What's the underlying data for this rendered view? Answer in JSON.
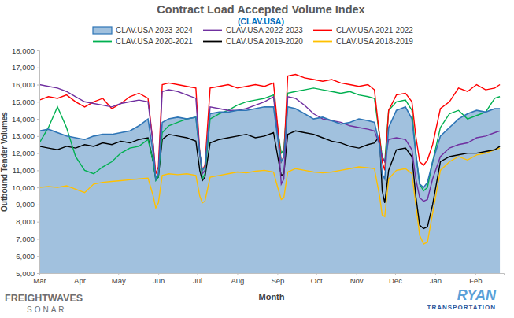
{
  "chart_data": {
    "type": "line",
    "title": "Contract Load Accepted Volume Index",
    "subtitle": "(CLAV.USA)",
    "x_label": "Month",
    "y_label": "Outbound Tender Volumes",
    "annotations": [
      "FREIGHTWAVES",
      "SONAR",
      "RYAN",
      "TRANSPORTATION"
    ],
    "legend": "top",
    "grid": false,
    "xlim": [
      0,
      359
    ],
    "xticks": [
      {
        "value": 0,
        "label": "Mar"
      },
      {
        "value": 31,
        "label": "Apr"
      },
      {
        "value": 61,
        "label": "May"
      },
      {
        "value": 92,
        "label": "Jun"
      },
      {
        "value": 122,
        "label": "Jul"
      },
      {
        "value": 153,
        "label": "Aug"
      },
      {
        "value": 184,
        "label": "Sep"
      },
      {
        "value": 214,
        "label": "Oct"
      },
      {
        "value": 245,
        "label": "Nov"
      },
      {
        "value": 275,
        "label": "Dec"
      },
      {
        "value": 306,
        "label": "Jan"
      },
      {
        "value": 337,
        "label": "Feb"
      }
    ],
    "ylim": [
      5000,
      18000
    ],
    "yticks": [
      {
        "value": 5000,
        "label": "5,000"
      },
      {
        "value": 6000,
        "label": "6,000"
      },
      {
        "value": 7000,
        "label": "7,000"
      },
      {
        "value": 8000,
        "label": "8,000"
      },
      {
        "value": 9000,
        "label": "9,000"
      },
      {
        "value": 10000,
        "label": "10,000"
      },
      {
        "value": 11000,
        "label": "11,000"
      },
      {
        "value": 12000,
        "label": "12,000"
      },
      {
        "value": 13000,
        "label": "13,000"
      },
      {
        "value": 14000,
        "label": "14,000"
      },
      {
        "value": 15000,
        "label": "15,000"
      },
      {
        "value": 16000,
        "label": "16,000"
      },
      {
        "value": 17000,
        "label": "17,000"
      },
      {
        "value": 18000,
        "label": "18,000"
      }
    ],
    "x": [
      0,
      7,
      14,
      21,
      28,
      35,
      42,
      49,
      56,
      63,
      70,
      77,
      84,
      88,
      90,
      92,
      95,
      100,
      107,
      114,
      121,
      124,
      126,
      128,
      132,
      139,
      146,
      153,
      160,
      167,
      174,
      181,
      185,
      187,
      189,
      192,
      198,
      205,
      212,
      219,
      226,
      233,
      240,
      247,
      254,
      259,
      263,
      265,
      267,
      270,
      276,
      283,
      288,
      291,
      294,
      297,
      300,
      304,
      310,
      317,
      324,
      331,
      338,
      345,
      352,
      356
    ],
    "series": [
      {
        "name": "CLAV.USA 2023-2024",
        "type": "area",
        "color": "#2e75b6",
        "values": [
          13300,
          13400,
          13200,
          13000,
          12900,
          12800,
          13000,
          13100,
          13100,
          13200,
          13300,
          13600,
          14000,
          12000,
          10500,
          10800,
          13800,
          14000,
          14100,
          14000,
          14100,
          12000,
          11000,
          11200,
          14300,
          14400,
          14400,
          14500,
          14500,
          14600,
          14700,
          14700,
          12500,
          11500,
          11800,
          14700,
          14600,
          14300,
          14000,
          14100,
          13900,
          13700,
          13800,
          14000,
          13900,
          13800,
          12500,
          10800,
          10500,
          13500,
          14500,
          14700,
          14000,
          12000,
          10200,
          10000,
          10300,
          11500,
          13000,
          13500,
          14000,
          14300,
          14500,
          14400,
          14600,
          14600
        ]
      },
      {
        "name": "CLAV.USA 2022-2023",
        "type": "line",
        "color": "#7030a0",
        "values": [
          16000,
          15900,
          15800,
          15600,
          15300,
          15000,
          14900,
          14800,
          14700,
          14900,
          15000,
          15100,
          15000,
          12500,
          10500,
          10800,
          15600,
          15700,
          15600,
          15400,
          15200,
          12000,
          10800,
          11000,
          14700,
          14600,
          14500,
          14500,
          14600,
          14800,
          15000,
          15300,
          12500,
          10200,
          10500,
          15300,
          15200,
          14800,
          14300,
          14000,
          13900,
          13800,
          13600,
          13500,
          13400,
          13300,
          12500,
          11800,
          11500,
          12800,
          12900,
          12800,
          12200,
          10500,
          9400,
          9200,
          9300,
          10500,
          11800,
          12300,
          12500,
          12600,
          12900,
          13000,
          13200,
          13300
        ]
      },
      {
        "name": "CLAV.USA 2021-2022",
        "type": "line",
        "color": "#ff0000",
        "values": [
          15100,
          15300,
          15200,
          15400,
          15000,
          14700,
          15000,
          15200,
          14600,
          14900,
          15300,
          15500,
          15200,
          12500,
          10800,
          11200,
          16000,
          16100,
          16000,
          15900,
          15800,
          12000,
          11000,
          11300,
          15800,
          15900,
          16000,
          15800,
          15900,
          16000,
          15900,
          16100,
          13000,
          11500,
          11800,
          16500,
          16600,
          16400,
          16300,
          16200,
          16300,
          16100,
          16000,
          15900,
          16000,
          15700,
          13000,
          11500,
          11000,
          14500,
          15400,
          15500,
          15000,
          13000,
          11500,
          11300,
          11600,
          12500,
          14600,
          15000,
          15800,
          15600,
          16000,
          15700,
          15800,
          16000
        ]
      },
      {
        "name": "CLAV.USA 2020-2021",
        "type": "line",
        "color": "#00b050",
        "values": [
          12600,
          13500,
          14700,
          13500,
          11800,
          11000,
          10800,
          11200,
          11500,
          12000,
          12300,
          12400,
          12800,
          11500,
          10400,
          10600,
          13200,
          13600,
          13800,
          14000,
          14100,
          12000,
          10500,
          10800,
          14000,
          14300,
          14500,
          14800,
          15000,
          15100,
          15200,
          15400,
          13000,
          12000,
          12200,
          15500,
          15600,
          15700,
          15800,
          15700,
          15600,
          15500,
          15600,
          15400,
          15300,
          15200,
          13000,
          11800,
          11500,
          14500,
          15000,
          15100,
          14500,
          12000,
          10200,
          9800,
          10000,
          11500,
          13500,
          14300,
          14500,
          14000,
          14200,
          14400,
          15200,
          15300
        ]
      },
      {
        "name": "CLAV.USA 2019-2020",
        "type": "line",
        "color": "#000000",
        "values": [
          12400,
          12300,
          12200,
          12400,
          12300,
          12500,
          12400,
          12600,
          12500,
          12700,
          12600,
          12800,
          12900,
          11500,
          10500,
          10600,
          12800,
          13100,
          13000,
          12900,
          12700,
          11000,
          10400,
          10600,
          12600,
          12800,
          12900,
          13000,
          13100,
          12900,
          13000,
          13200,
          11500,
          10700,
          10800,
          13100,
          13300,
          13200,
          13100,
          12900,
          12700,
          12600,
          12400,
          12300,
          12500,
          12600,
          13000,
          9800,
          9100,
          11000,
          12200,
          12300,
          11800,
          9500,
          7800,
          7600,
          7700,
          9000,
          11500,
          11800,
          11900,
          12000,
          12000,
          12100,
          12200,
          12400
        ]
      },
      {
        "name": "CLAV.USA 2018-2019",
        "type": "line",
        "color": "#ffc000",
        "values": [
          10000,
          10050,
          10000,
          10100,
          9900,
          9700,
          10200,
          10300,
          10350,
          10400,
          10450,
          10500,
          10550,
          9500,
          8800,
          9100,
          10700,
          10800,
          10750,
          10800,
          10700,
          9500,
          9100,
          9200,
          10600,
          10700,
          10800,
          10900,
          10850,
          10950,
          11000,
          10900,
          9800,
          9300,
          9400,
          10900,
          11100,
          11000,
          10900,
          10850,
          10900,
          11000,
          11100,
          11200,
          11150,
          11100,
          9500,
          8400,
          8300,
          10500,
          11000,
          11100,
          10800,
          9000,
          7200,
          6700,
          6800,
          8500,
          11000,
          11500,
          11800,
          11600,
          11900,
          12000,
          12200,
          12300
        ]
      }
    ]
  }
}
